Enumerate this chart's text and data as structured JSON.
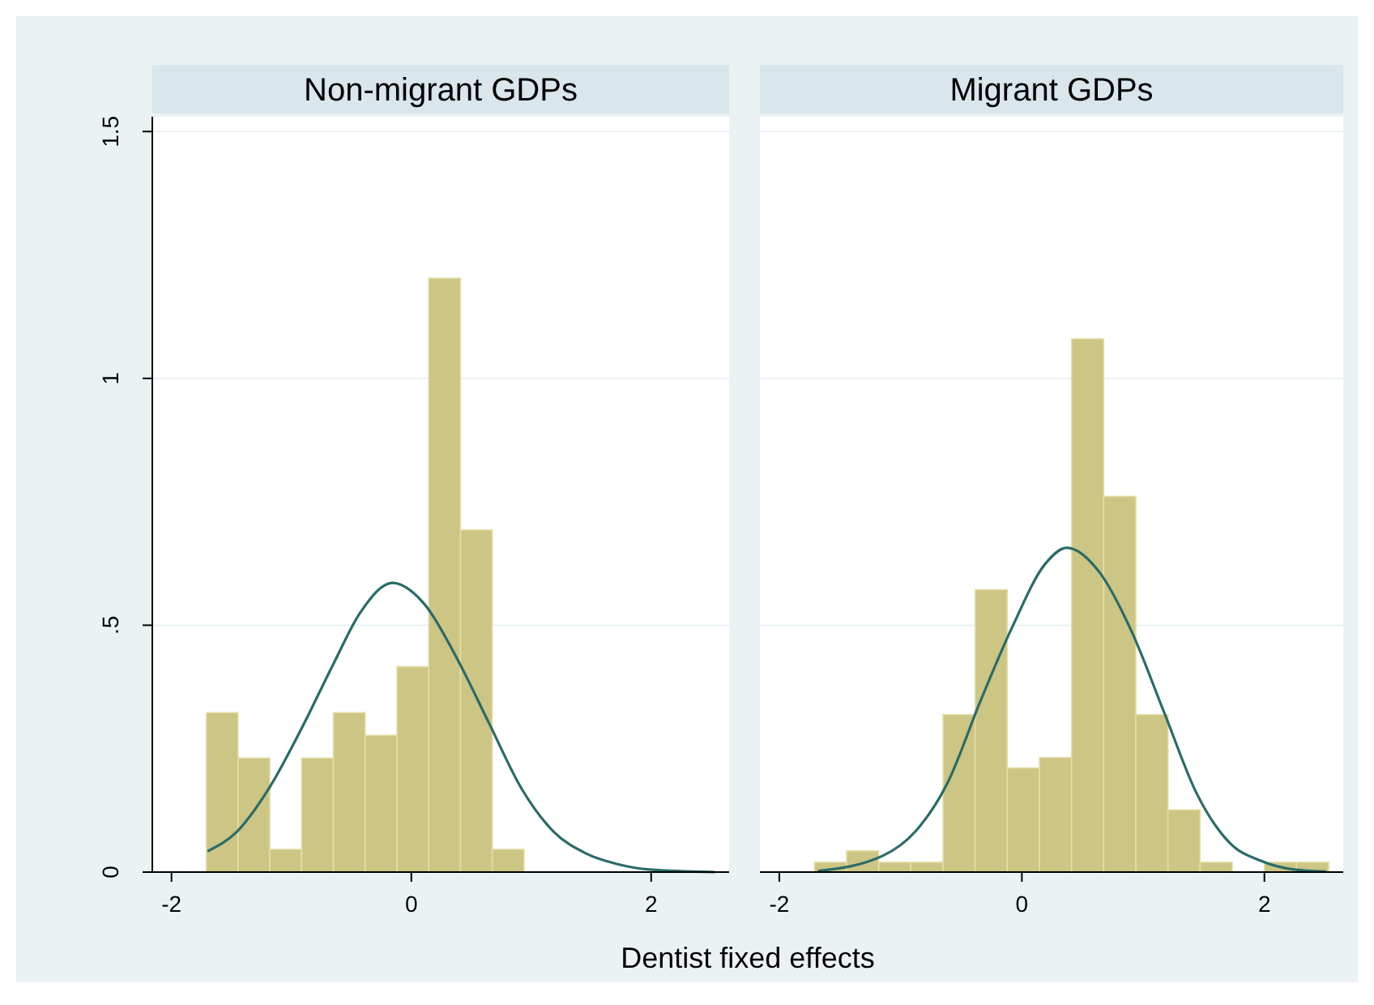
{
  "chart_data": [
    {
      "type": "histogram",
      "title": "Non-migrant GDPs",
      "xlabel": "Dentist fixed effects",
      "color": "#cdc584",
      "bins": [
        -1.71,
        -1.445,
        -1.18,
        -0.915,
        -0.65,
        -0.385,
        -0.12,
        0.145,
        0.41,
        0.675,
        0.94
      ],
      "values": [
        0.323,
        0.231,
        0.046,
        0.231,
        0.323,
        0.277,
        0.416,
        1.203,
        0.693,
        0.046
      ],
      "series": [
        {
          "type": "line",
          "color": "#2a6b68",
          "x": [
            -1.7,
            -1.454,
            -1.186,
            -0.917,
            -0.649,
            -0.425,
            -0.157,
            0.112,
            0.38,
            0.649,
            0.917,
            1.186,
            1.454,
            1.72,
            1.99,
            2.53
          ],
          "values": [
            0.042,
            0.082,
            0.17,
            0.29,
            0.422,
            0.526,
            0.586,
            0.542,
            0.433,
            0.301,
            0.17,
            0.082,
            0.038,
            0.016,
            0.005,
            0
          ]
        }
      ],
      "xlim": [
        -2.16,
        2.65
      ],
      "xticks": [
        -2,
        0,
        2
      ],
      "ylim": [
        0,
        1.53
      ],
      "yticks": [
        0,
        {
          "value": 0.5,
          "label": ".5"
        },
        1,
        1.5
      ],
      "grid": "y"
    },
    {
      "type": "histogram",
      "title": "Migrant GDPs",
      "color": "#cdc584",
      "bins": [
        -1.71,
        -1.445,
        -1.18,
        -0.915,
        -0.65,
        -0.385,
        -0.12,
        0.145,
        0.41,
        0.675,
        0.94,
        1.205,
        1.47,
        1.735,
        2.0,
        2.265,
        2.53
      ],
      "values": [
        0.02,
        0.043,
        0.02,
        0.02,
        0.319,
        0.572,
        0.211,
        0.232,
        1.08,
        0.761,
        0.319,
        0.126,
        0.02,
        0,
        0.02,
        0.02
      ],
      "series": [
        {
          "type": "line",
          "color": "#2a6b68",
          "x": [
            -1.683,
            -1.147,
            -0.879,
            -0.612,
            -0.344,
            -0.076,
            0.192,
            0.371,
            0.638,
            0.906,
            1.174,
            1.442,
            1.71,
            1.978,
            2.246,
            2.51
          ],
          "values": [
            0.002,
            0.033,
            0.082,
            0.181,
            0.345,
            0.498,
            0.624,
            0.657,
            0.608,
            0.487,
            0.323,
            0.159,
            0.06,
            0.022,
            0.005,
            0.001
          ]
        }
      ],
      "xlim": [
        -2.16,
        2.65
      ],
      "xticks": [
        -2,
        0,
        2
      ],
      "ylim": [
        0,
        1.53
      ],
      "yticks": [
        {
          "value": 0,
          "label": null
        },
        {
          "value": 0.5,
          "label": null
        },
        {
          "value": 1,
          "label": null
        },
        {
          "value": 1.5,
          "label": null
        }
      ],
      "grid": "y",
      "tick_labels": "x"
    }
  ]
}
